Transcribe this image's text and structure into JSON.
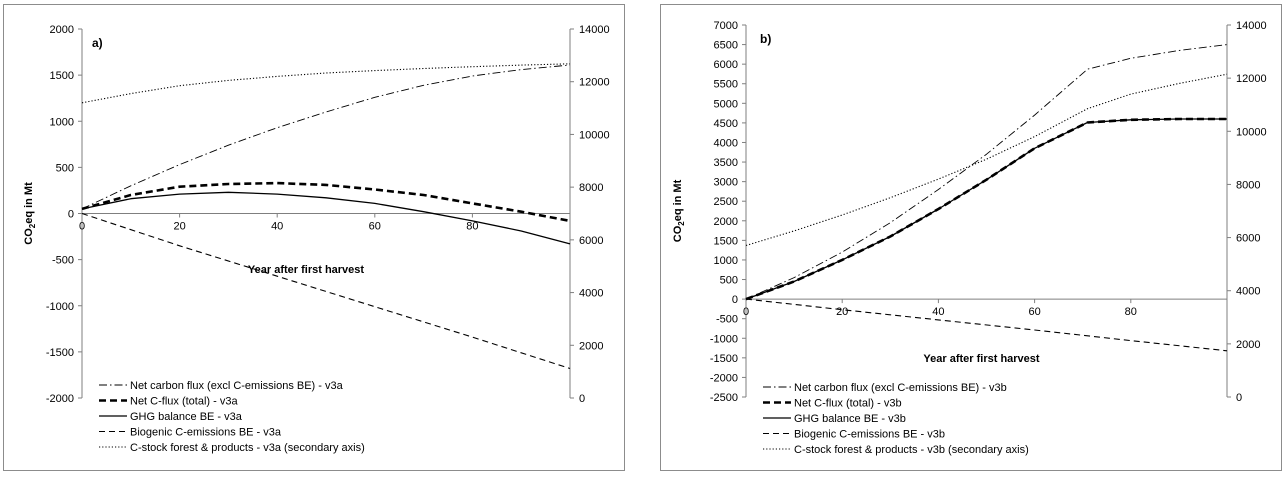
{
  "colors": {
    "line": "#000000",
    "axis": "#7f7f7f",
    "border": "#8c8c8c"
  },
  "chart_data": [
    {
      "type": "line",
      "panel_label": "a)",
      "xlabel": "Year after first harvest",
      "ylabel_main": "CO",
      "ylabel_sub": "2",
      "ylabel_rest": "eq in Mt",
      "xlim": [
        0,
        100
      ],
      "ylim": [
        -2000,
        2000
      ],
      "y2lim": [
        0,
        14000
      ],
      "xticks": [
        "0",
        "20",
        "40",
        "60",
        "80"
      ],
      "xtick_values": [
        0,
        20,
        40,
        60,
        80
      ],
      "yticks": [
        "2000",
        "1500",
        "1000",
        "500",
        "0",
        "-500",
        "-1000",
        "-1500",
        "-2000"
      ],
      "ytick_values": [
        2000,
        1500,
        1000,
        500,
        0,
        -500,
        -1000,
        -1500,
        -2000
      ],
      "y2ticks": [
        "14000",
        "12000",
        "10000",
        "8000",
        "6000",
        "4000",
        "2000",
        "0"
      ],
      "y2tick_values": [
        14000,
        12000,
        10000,
        8000,
        6000,
        4000,
        2000,
        0
      ],
      "series": [
        {
          "name": "Net carbon flux (excl C-emissions BE) - v3a",
          "style": "dashdot",
          "axis": "y",
          "x": [
            0,
            10,
            20,
            30,
            40,
            50,
            60,
            70,
            80,
            90,
            100
          ],
          "y": [
            50,
            300,
            530,
            740,
            930,
            1100,
            1260,
            1390,
            1490,
            1560,
            1610
          ]
        },
        {
          "name": "Net C-flux (total) - v3a",
          "style": "thickdash",
          "axis": "y",
          "x": [
            0,
            10,
            20,
            30,
            40,
            50,
            60,
            70,
            80,
            90,
            100
          ],
          "y": [
            50,
            200,
            290,
            320,
            330,
            310,
            260,
            200,
            110,
            20,
            -80
          ]
        },
        {
          "name": "GHG balance BE - v3a",
          "style": "solid",
          "axis": "y",
          "x": [
            0,
            10,
            20,
            30,
            40,
            50,
            60,
            70,
            80,
            90,
            100
          ],
          "y": [
            50,
            160,
            210,
            230,
            210,
            170,
            110,
            20,
            -80,
            -190,
            -330
          ]
        },
        {
          "name": "Biogenic C-emissions BE - v3a",
          "style": "dash",
          "axis": "y",
          "x": [
            0,
            20,
            40,
            60,
            80,
            100
          ],
          "y": [
            0,
            -350,
            -680,
            -1010,
            -1340,
            -1680
          ]
        },
        {
          "name": "C-stock forest & products - v3a (secondary axis)",
          "style": "dot",
          "axis": "y2",
          "x": [
            0,
            10,
            20,
            30,
            40,
            50,
            60,
            70,
            80,
            90,
            100
          ],
          "y": [
            11200,
            11550,
            11850,
            12050,
            12200,
            12330,
            12420,
            12500,
            12570,
            12630,
            12680
          ]
        }
      ]
    },
    {
      "type": "line",
      "panel_label": "b)",
      "xlabel": "Year after first harvest",
      "ylabel_main": "CO",
      "ylabel_sub": "2",
      "ylabel_rest": "eq in Mt",
      "xlim": [
        0,
        100
      ],
      "ylim": [
        -2500,
        7000
      ],
      "y2lim": [
        0,
        14000
      ],
      "xticks": [
        "0",
        "20",
        "40",
        "60",
        "80"
      ],
      "xtick_values": [
        0,
        20,
        40,
        60,
        80
      ],
      "yticks": [
        "7000",
        "6500",
        "6000",
        "5500",
        "5000",
        "4500",
        "4000",
        "3500",
        "3000",
        "2500",
        "2000",
        "1500",
        "1000",
        "500",
        "0",
        "-500",
        "-1000",
        "-1500",
        "-2000",
        "-2500"
      ],
      "ytick_values": [
        7000,
        6500,
        6000,
        5500,
        5000,
        4500,
        4000,
        3500,
        3000,
        2500,
        2000,
        1500,
        1000,
        500,
        0,
        -500,
        -1000,
        -1500,
        -2000,
        -2500
      ],
      "y2ticks": [
        "14000",
        "12000",
        "10000",
        "8000",
        "6000",
        "4000",
        "2000",
        "0"
      ],
      "y2tick_values": [
        14000,
        12000,
        10000,
        8000,
        6000,
        4000,
        2000,
        0
      ],
      "series": [
        {
          "name": "Net carbon flux (excl C-emissions BE) - v3b",
          "style": "dashdot",
          "axis": "y",
          "x": [
            0,
            10,
            20,
            30,
            40,
            50,
            60,
            71,
            80,
            90,
            100
          ],
          "y": [
            0,
            550,
            1200,
            1950,
            2800,
            3700,
            4700,
            5870,
            6150,
            6350,
            6500
          ]
        },
        {
          "name": "Net C-flux (total) - v3b",
          "style": "thickdash",
          "axis": "y",
          "x": [
            0,
            10,
            20,
            30,
            40,
            50,
            60,
            71,
            80,
            90,
            100
          ],
          "y": [
            0,
            450,
            1000,
            1600,
            2300,
            3050,
            3850,
            4510,
            4580,
            4600,
            4600
          ]
        },
        {
          "name": "GHG balance BE - v3b",
          "style": "solid",
          "axis": "y",
          "x": [
            0,
            10,
            20,
            30,
            40,
            50,
            60,
            71,
            80,
            90,
            100
          ],
          "y": [
            0,
            450,
            1000,
            1600,
            2300,
            3050,
            3850,
            4510,
            4580,
            4600,
            4600
          ]
        },
        {
          "name": "Biogenic C-emissions BE - v3b",
          "style": "dash",
          "axis": "y",
          "x": [
            0,
            20,
            40,
            60,
            80,
            100
          ],
          "y": [
            0,
            -270,
            -530,
            -790,
            -1060,
            -1320
          ]
        },
        {
          "name": "C-stock forest & products - v3b (secondary axis)",
          "style": "dot",
          "axis": "y2",
          "x": [
            0,
            10,
            20,
            30,
            40,
            50,
            60,
            71,
            80,
            90,
            100
          ],
          "y": [
            5700,
            6250,
            6850,
            7500,
            8200,
            8950,
            9800,
            10850,
            11400,
            11800,
            12150
          ]
        }
      ]
    }
  ]
}
